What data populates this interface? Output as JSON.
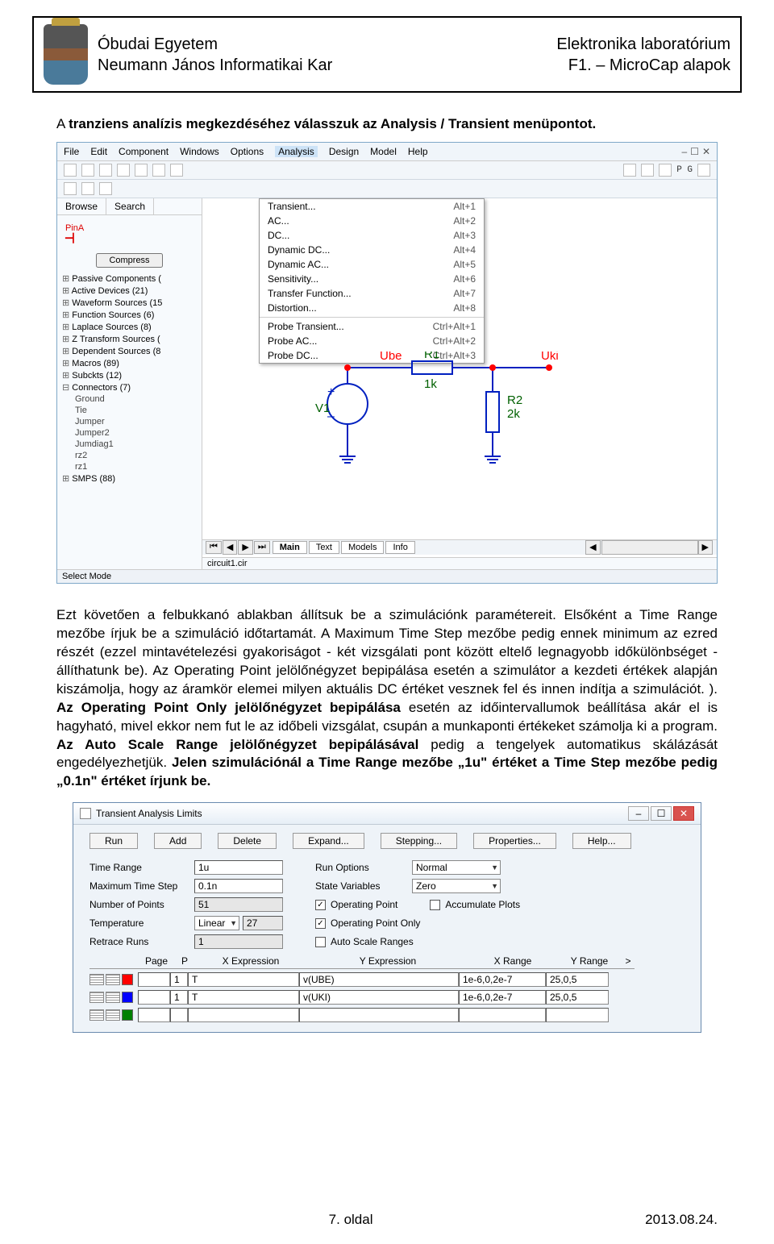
{
  "header": {
    "uni": "Óbudai Egyetem",
    "faculty": "Neumann János Informatikai Kar",
    "lab": "Elektronika laboratórium",
    "subj": "F1. – MicroCap alapok"
  },
  "para": {
    "p1_a": "A ",
    "p1_b": "tranziens analízis megkezdéséhez válasszuk az Analysis / Transient menüpontot.",
    "p2_a": "Ezt követően a felbukkanó ablakban állítsuk be a szimulációnk paramétereit. Elsőként a Time Range mezőbe írjuk be a szimuláció időtartamát. A Maximum Time Step mezőbe pedig ennek minimum az ezred részét (ezzel mintavételezési gyakoriságot - két vizsgálati pont között eltelő legnagyobb időkülönbséget - állíthatunk be). Az Operating Point jelölőnégyzet bepipálása esetén a szimulátor a kezdeti értékek alapján kiszámolja, hogy az áramkör elemei milyen aktuális DC értéket vesznek fel és innen indítja a szimulációt. ). ",
    "p2_b": "Az Operating Point Only jelölőnégyzet bepipálása",
    "p2_c": " esetén az időintervallumok beállítása akár el is hagyható, mivel ekkor nem fut le az időbeli vizsgálat, csupán a munkaponti értékeket számolja ki a program. ",
    "p2_d": "Az Auto Scale Range jelölőnégyzet bepipálásával",
    "p2_e": " pedig a tengelyek automatikus skálázását engedélyezhetjük. ",
    "p2_f": "Jelen szimulációnál a Time Range mezőbe „1u\" értéket a Time Step mezőbe pedig „0.1n\" értéket írjunk be."
  },
  "menu": {
    "file": "File",
    "edit": "Edit",
    "comp": "Component",
    "win": "Windows",
    "opt": "Options",
    "anal": "Analysis",
    "des": "Design",
    "model": "Model",
    "help": "Help"
  },
  "analysis_menu": [
    {
      "l": "Transient...",
      "s": "Alt+1"
    },
    {
      "l": "AC...",
      "s": "Alt+2"
    },
    {
      "l": "DC...",
      "s": "Alt+3"
    },
    {
      "l": "Dynamic DC...",
      "s": "Alt+4"
    },
    {
      "l": "Dynamic AC...",
      "s": "Alt+5"
    },
    {
      "l": "Sensitivity...",
      "s": "Alt+6"
    },
    {
      "l": "Transfer Function...",
      "s": "Alt+7"
    },
    {
      "l": "Distortion...",
      "s": "Alt+8"
    },
    {
      "sep": true
    },
    {
      "l": "Probe Transient...",
      "s": "Ctrl+Alt+1"
    },
    {
      "l": "Probe AC...",
      "s": "Ctrl+Alt+2"
    },
    {
      "l": "Probe DC...",
      "s": "Ctrl+Alt+3"
    }
  ],
  "side": {
    "browse": "Browse",
    "search": "Search",
    "pina": "PinA",
    "compress": "Compress",
    "tree": [
      {
        "t": "exp",
        "l": "Passive Components ("
      },
      {
        "t": "exp",
        "l": "Active Devices (21)"
      },
      {
        "t": "exp",
        "l": "Waveform Sources (15"
      },
      {
        "t": "exp",
        "l": "Function Sources (6)"
      },
      {
        "t": "exp",
        "l": "Laplace Sources (8)"
      },
      {
        "t": "exp",
        "l": "Z Transform Sources ("
      },
      {
        "t": "exp",
        "l": "Dependent Sources (8"
      },
      {
        "t": "exp",
        "l": "Macros (89)"
      },
      {
        "t": "exp",
        "l": "Subckts (12)"
      },
      {
        "t": "col",
        "l": "Connectors (7)"
      },
      {
        "t": "leaf",
        "l": "Ground"
      },
      {
        "t": "leaf",
        "l": "Tie"
      },
      {
        "t": "leaf",
        "l": "Jumper"
      },
      {
        "t": "leaf",
        "l": "Jumper2"
      },
      {
        "t": "leaf",
        "l": "Jumdiag1"
      },
      {
        "t": "leaf",
        "l": "rz2"
      },
      {
        "t": "leaf",
        "l": "rz1"
      },
      {
        "t": "exp",
        "l": "SMPS (88)"
      }
    ],
    "status": "Select Mode"
  },
  "canvas": {
    "tabs": {
      "main": "Main",
      "text": "Text",
      "models": "Models",
      "info": "Info"
    },
    "file": "circuit1.cir"
  },
  "circuit": {
    "v1": "V1",
    "ube": "Ube",
    "r1": "R1",
    "r1v": "1k",
    "r2": "R2",
    "r2v": "2k",
    "uki": "Uki"
  },
  "dialog": {
    "title": "Transient Analysis Limits",
    "buttons": [
      "Run",
      "Add",
      "Delete",
      "Expand...",
      "Stepping...",
      "Properties...",
      "Help..."
    ],
    "labels": {
      "tr": "Time Range",
      "mts": "Maximum Time Step",
      "nop": "Number of Points",
      "temp": "Temperature",
      "lin": "Linear",
      "rr": "Retrace Runs",
      "ro": "Run Options",
      "sv": "State Variables",
      "op": "Operating Point",
      "opo": "Operating Point Only",
      "asr": "Auto Scale Ranges",
      "ap": "Accumulate Plots"
    },
    "values": {
      "tr": "1u",
      "mts": "0.1n",
      "nop": "51",
      "temp": "27",
      "rr": "1",
      "ro": "Normal",
      "sv": "Zero"
    },
    "gridhead": {
      "page": "Page",
      "p": "P",
      "xe": "X Expression",
      "ye": "Y Expression",
      "xr": "X Range",
      "yr": "Y Range",
      "gt": ">"
    },
    "gridrows": [
      {
        "color": "#ff0000",
        "p": "1",
        "xe": "T",
        "ye": "v(UBE)",
        "xr": "1e-6,0,2e-7",
        "yr": "25,0,5"
      },
      {
        "color": "#0000ff",
        "p": "1",
        "xe": "T",
        "ye": "v(UKI)",
        "xr": "1e-6,0,2e-7",
        "yr": "25,0,5"
      },
      {
        "color": "#008000",
        "p": "",
        "xe": "",
        "ye": "",
        "xr": "",
        "yr": ""
      }
    ]
  },
  "footer": {
    "page": "7. oldal",
    "date": "2013.08.24."
  },
  "colors": {
    "circuit_wire": "#0020c0",
    "circuit_red": "#ff0000",
    "circuit_green": "#006000"
  }
}
